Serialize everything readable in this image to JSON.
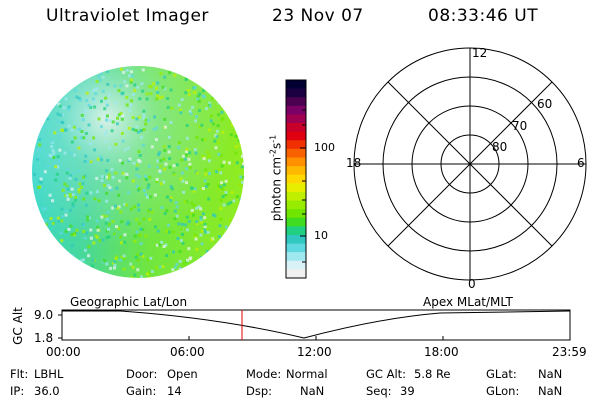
{
  "header": {
    "instrument": "Ultraviolet Imager",
    "date": "23 Nov 07",
    "time": "08:33:46 UT"
  },
  "colorbar": {
    "label": "photon cm",
    "label_sup1": "-2",
    "label_mid": "s",
    "label_sup2": "-1",
    "ticks": [
      "100",
      "10"
    ],
    "colors": [
      "#000033",
      "#1a0040",
      "#4b0050",
      "#7a0066",
      "#a00050",
      "#c8002a",
      "#e00010",
      "#f03000",
      "#f86000",
      "#ff9000",
      "#ffb800",
      "#ffd800",
      "#e8ee00",
      "#c0f000",
      "#98ec00",
      "#70e600",
      "#40dc20",
      "#20d080",
      "#30c8c0",
      "#60d8e0",
      "#a0e8f0",
      "#d8f2f8",
      "#f0f0f0"
    ]
  },
  "polar": {
    "mlt_labels": {
      "top": "12",
      "left": "18",
      "right": "6",
      "bottom": "0"
    },
    "lat_labels": [
      "60",
      "70",
      "80"
    ]
  },
  "timeline": {
    "left_label": "Geographic Lat/Lon",
    "right_label": "Apex MLat/MLT",
    "axis_title": "GC Alt",
    "y_ticks": [
      "9.0",
      "1.8"
    ],
    "x_ticks": [
      "00:00",
      "06:00",
      "12:00",
      "18:00",
      "23:59"
    ],
    "marker_time": "08:33:46"
  },
  "info": {
    "flt_label": "Flt:",
    "flt_value": "LBHL",
    "ip_label": "IP:",
    "ip_value": "36.0",
    "door_label": "Door:",
    "door_value": "Open",
    "gain_label": "Gain:",
    "gain_value": "14",
    "mode_label": "Mode:",
    "mode_value": "Normal",
    "dsp_label": "Dsp:",
    "dsp_value": "NaN",
    "gcalt_label": "GC Alt:",
    "gcalt_value": "5.8 Re",
    "seq_label": "Seq:",
    "seq_value": "39",
    "glat_label": "GLat:",
    "glat_value": "NaN",
    "glon_label": "GLon:",
    "glon_value": "NaN"
  }
}
